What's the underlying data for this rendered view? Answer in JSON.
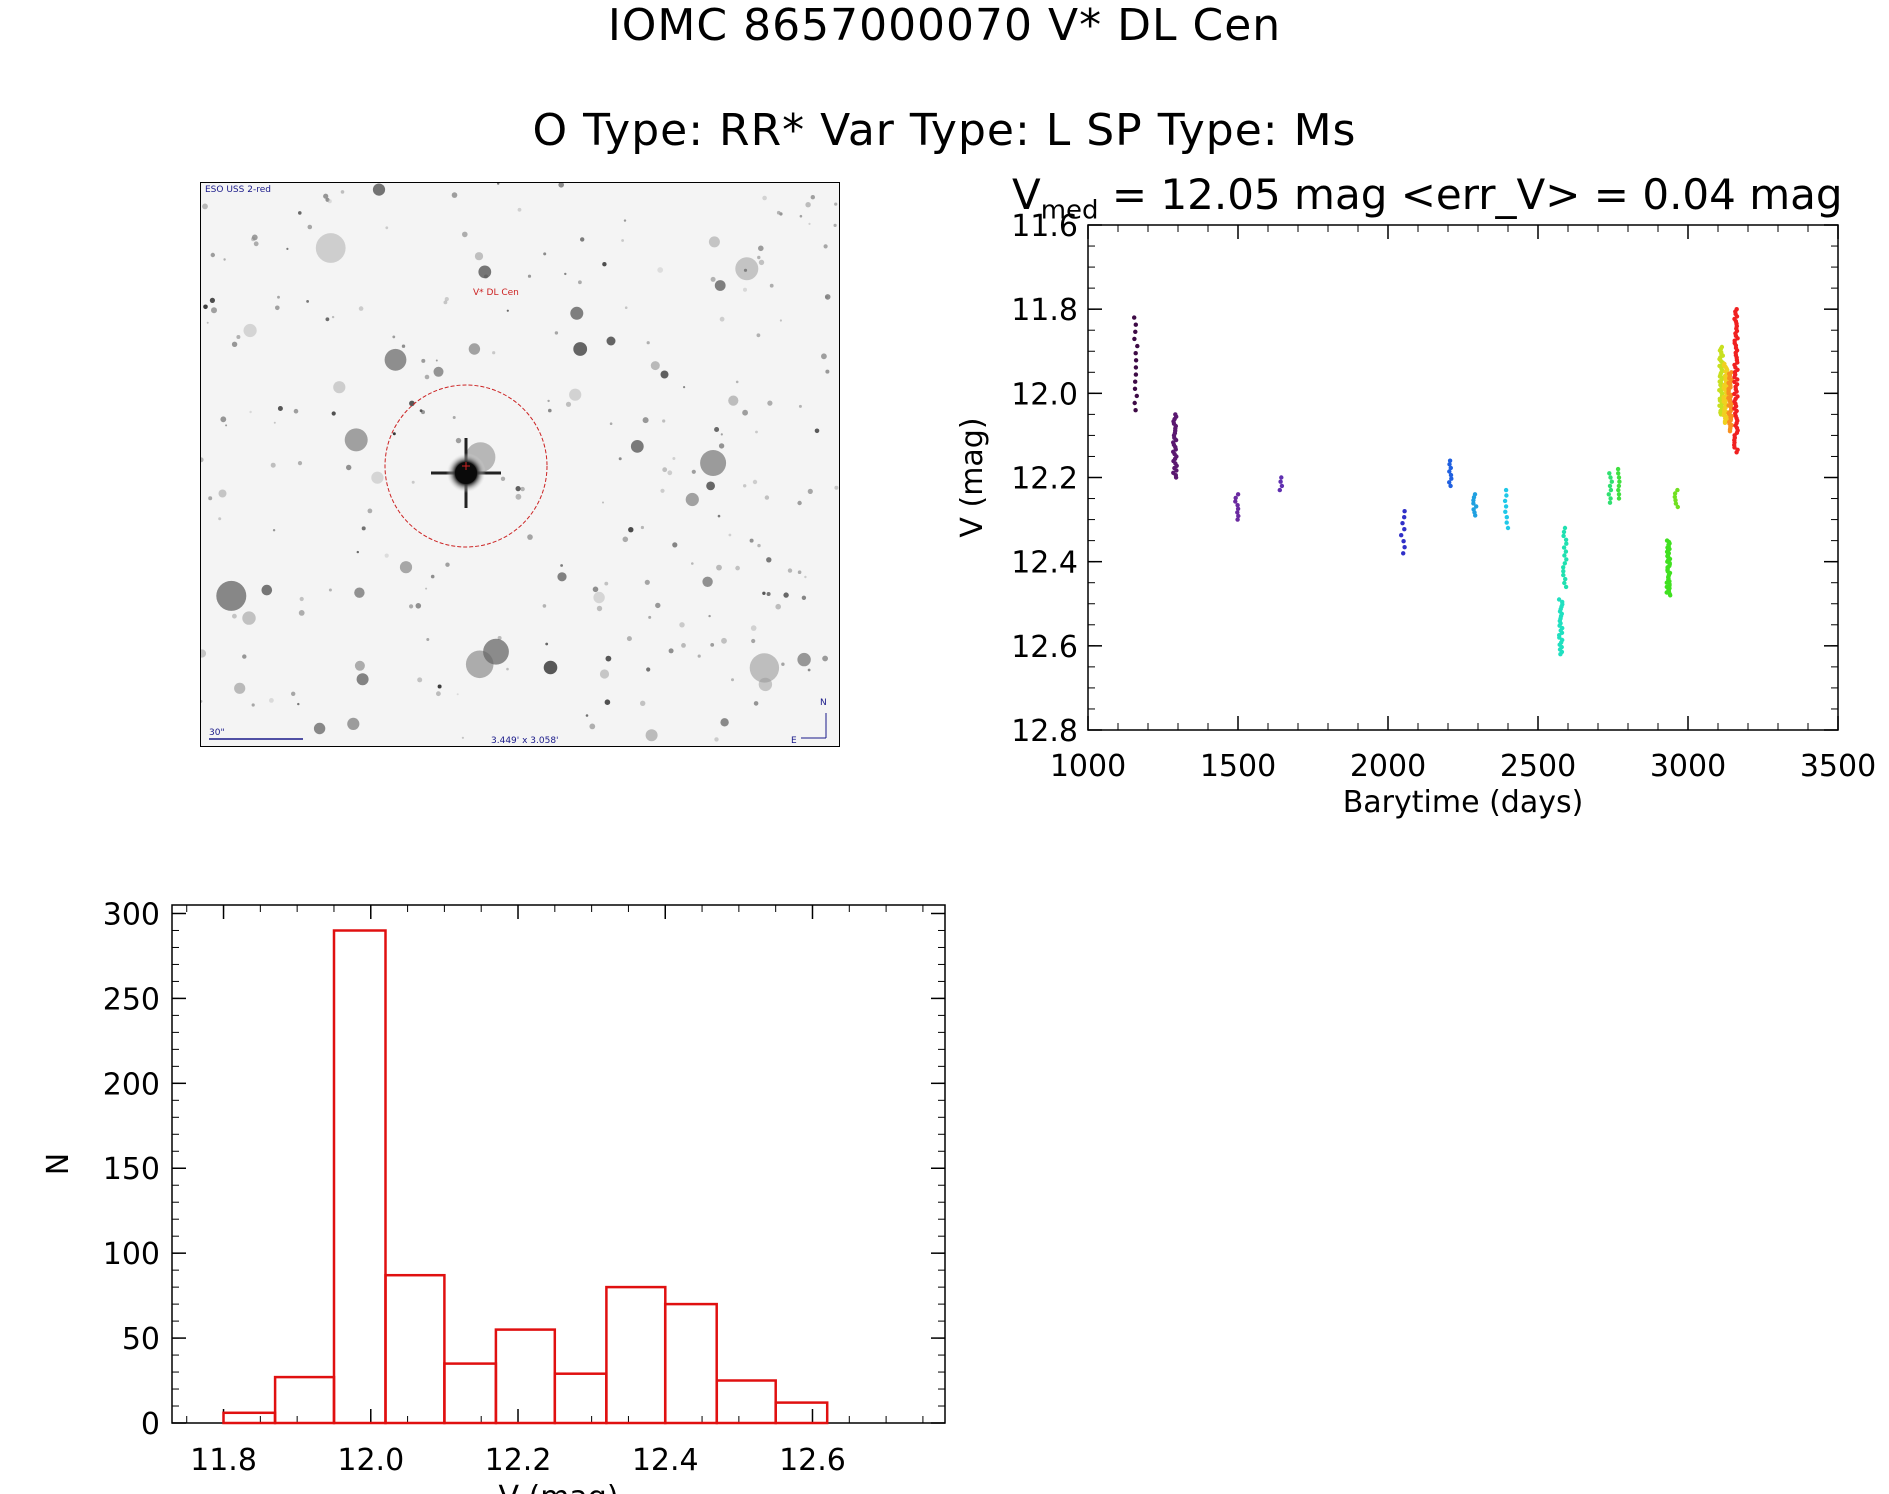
{
  "header": {
    "title_line1": "IOMC 8657000070    V* DL Cen",
    "title_line2": "O Type: RR*  Var Type: L  SP Type: Ms"
  },
  "stamp": {
    "survey_label": "ESO USS 2-red",
    "target_label": "V* DL Cen",
    "scale_label": "30\"",
    "size_label": "3.449' x 3.058'",
    "north_label": "N",
    "east_label": "E",
    "circle_color": "#cc2222"
  },
  "lightcurve": {
    "caption_main": "V",
    "caption_sub": "med",
    "caption_rest": " = 12.05 mag <err_V> = 0.04 mag"
  },
  "chart_data": [
    {
      "type": "scatter",
      "name": "lightcurve",
      "xlabel": "Barytime (days)",
      "ylabel": "V (mag)",
      "xlim": [
        1000,
        3500
      ],
      "ylim": [
        12.8,
        11.6
      ],
      "x_ticks": [
        1000,
        1500,
        2000,
        2500,
        3000,
        3500
      ],
      "y_ticks": [
        11.6,
        11.8,
        12.0,
        12.2,
        12.4,
        12.6,
        12.8
      ],
      "y_inverted": true,
      "groups": [
        {
          "x": 1160,
          "ymin": 11.82,
          "ymax": 12.04,
          "color": "#3d0a45",
          "n": 14
        },
        {
          "x": 1290,
          "ymin": 12.05,
          "ymax": 12.2,
          "color": "#5a1870",
          "n": 28
        },
        {
          "x": 1495,
          "ymin": 12.24,
          "ymax": 12.3,
          "color": "#6a2aa0",
          "n": 8
        },
        {
          "x": 1645,
          "ymin": 12.2,
          "ymax": 12.23,
          "color": "#6030b0",
          "n": 4
        },
        {
          "x": 2050,
          "ymin": 12.28,
          "ymax": 12.38,
          "color": "#3030c8",
          "n": 8
        },
        {
          "x": 2205,
          "ymin": 12.16,
          "ymax": 12.22,
          "color": "#2060e0",
          "n": 8
        },
        {
          "x": 2290,
          "ymin": 12.24,
          "ymax": 12.29,
          "color": "#20a0e0",
          "n": 8
        },
        {
          "x": 2395,
          "ymin": 12.23,
          "ymax": 12.32,
          "color": "#20c8e8",
          "n": 8
        },
        {
          "x": 2575,
          "ymin": 12.49,
          "ymax": 12.62,
          "color": "#20e0c0",
          "n": 24
        },
        {
          "x": 2590,
          "ymin": 12.32,
          "ymax": 12.46,
          "color": "#20e0b0",
          "n": 16
        },
        {
          "x": 2740,
          "ymin": 12.19,
          "ymax": 12.26,
          "color": "#30e070",
          "n": 8
        },
        {
          "x": 2770,
          "ymin": 12.18,
          "ymax": 12.25,
          "color": "#40e040",
          "n": 8
        },
        {
          "x": 2935,
          "ymin": 12.35,
          "ymax": 12.48,
          "color": "#40e020",
          "n": 40
        },
        {
          "x": 2960,
          "ymin": 12.23,
          "ymax": 12.27,
          "color": "#70e020",
          "n": 6
        },
        {
          "x": 3110,
          "ymin": 11.89,
          "ymax": 12.05,
          "color": "#c8e020",
          "n": 40
        },
        {
          "x": 3125,
          "ymin": 11.93,
          "ymax": 12.07,
          "color": "#f0d020",
          "n": 40
        },
        {
          "x": 3140,
          "ymin": 11.95,
          "ymax": 12.09,
          "color": "#f89020",
          "n": 40
        },
        {
          "x": 3160,
          "ymin": 11.8,
          "ymax": 12.14,
          "color": "#f02020",
          "n": 60
        }
      ]
    },
    {
      "type": "bar",
      "name": "histogram",
      "xlabel": "V (mag)",
      "ylabel": "N",
      "xlim": [
        11.73,
        12.78
      ],
      "ylim": [
        0,
        305
      ],
      "x_ticks": [
        11.8,
        12.0,
        12.2,
        12.4,
        12.6
      ],
      "y_ticks": [
        0,
        50,
        100,
        150,
        200,
        250,
        300
      ],
      "bin_edges": [
        11.8,
        11.87,
        11.95,
        12.02,
        12.1,
        12.17,
        12.25,
        12.32,
        12.4,
        12.47,
        12.55,
        12.62
      ],
      "values": [
        6,
        27,
        290,
        87,
        35,
        55,
        29,
        80,
        70,
        25,
        12
      ],
      "color": "#e01010"
    }
  ]
}
